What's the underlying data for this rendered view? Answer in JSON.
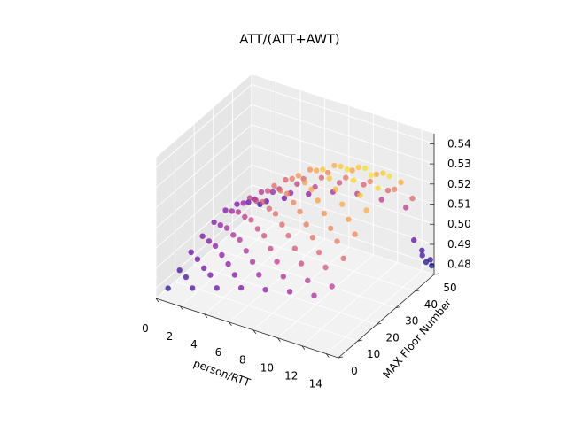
{
  "chart_data": {
    "type": "scatter",
    "title": "ATT/(ATT+AWT)",
    "xlabel": "person/RTT",
    "ylabel": "MAX Floor Number",
    "zlabel": "",
    "xlim": [
      0,
      15
    ],
    "ylim": [
      0,
      50
    ],
    "zlim": [
      0.475,
      0.545
    ],
    "xticks": [
      "0",
      "2",
      "4",
      "6",
      "8",
      "10",
      "12",
      "14"
    ],
    "yticks": [
      "0",
      "10",
      "20",
      "30",
      "40",
      "50"
    ],
    "zticks": [
      "0.48",
      "0.49",
      "0.50",
      "0.51",
      "0.52",
      "0.53",
      "0.54"
    ],
    "colormap": "plasma",
    "grid": true,
    "points": [
      [
        1,
        0,
        0.482
      ],
      [
        3,
        0,
        0.486
      ],
      [
        5,
        0,
        0.49
      ],
      [
        7,
        0,
        0.494
      ],
      [
        9,
        0,
        0.497
      ],
      [
        11,
        0,
        0.5
      ],
      [
        13,
        0,
        0.502
      ],
      [
        1,
        6,
        0.486
      ],
      [
        3,
        6,
        0.491
      ],
      [
        5,
        6,
        0.497
      ],
      [
        7,
        6,
        0.502
      ],
      [
        9,
        6,
        0.506
      ],
      [
        11,
        6,
        0.509
      ],
      [
        13,
        6,
        0.511
      ],
      [
        1,
        12,
        0.49
      ],
      [
        3,
        12,
        0.497
      ],
      [
        5,
        12,
        0.504
      ],
      [
        7,
        12,
        0.51
      ],
      [
        9,
        12,
        0.514
      ],
      [
        11,
        12,
        0.517
      ],
      [
        13,
        12,
        0.519
      ],
      [
        1,
        18,
        0.493
      ],
      [
        3,
        18,
        0.501
      ],
      [
        5,
        18,
        0.509
      ],
      [
        7,
        18,
        0.516
      ],
      [
        9,
        18,
        0.521
      ],
      [
        11,
        18,
        0.524
      ],
      [
        13,
        18,
        0.525
      ],
      [
        1,
        24,
        0.495
      ],
      [
        3,
        24,
        0.504
      ],
      [
        5,
        24,
        0.513
      ],
      [
        7,
        24,
        0.521
      ],
      [
        9,
        24,
        0.527
      ],
      [
        11,
        24,
        0.531
      ],
      [
        13,
        24,
        0.532
      ],
      [
        1,
        30,
        0.496
      ],
      [
        3,
        30,
        0.506
      ],
      [
        5,
        30,
        0.516
      ],
      [
        7,
        30,
        0.525
      ],
      [
        9,
        30,
        0.532
      ],
      [
        11,
        30,
        0.536
      ],
      [
        13,
        30,
        0.537
      ],
      [
        1,
        36,
        0.494
      ],
      [
        3,
        36,
        0.504
      ],
      [
        5,
        36,
        0.514
      ],
      [
        7,
        36,
        0.523
      ],
      [
        9,
        36,
        0.529
      ],
      [
        11,
        36,
        0.532
      ],
      [
        13,
        36,
        0.533
      ],
      [
        1,
        42,
        0.49
      ],
      [
        3,
        42,
        0.499
      ],
      [
        5,
        42,
        0.507
      ],
      [
        7,
        42,
        0.514
      ],
      [
        9,
        42,
        0.518
      ],
      [
        11,
        42,
        0.52
      ],
      [
        13,
        42,
        0.52
      ],
      [
        1,
        48,
        0.484
      ],
      [
        3,
        48,
        0.491
      ],
      [
        5,
        48,
        0.497
      ],
      [
        7,
        48,
        0.502
      ],
      [
        9,
        48,
        0.505
      ],
      [
        11,
        48,
        0.506
      ],
      [
        13,
        48,
        0.506
      ],
      [
        2,
        3,
        0.487
      ],
      [
        4,
        3,
        0.492
      ],
      [
        6,
        3,
        0.496
      ],
      [
        8,
        3,
        0.5
      ],
      [
        10,
        3,
        0.503
      ],
      [
        12,
        3,
        0.505
      ],
      [
        14,
        3,
        0.506
      ],
      [
        2,
        9,
        0.491
      ],
      [
        4,
        9,
        0.497
      ],
      [
        6,
        9,
        0.503
      ],
      [
        8,
        9,
        0.508
      ],
      [
        10,
        9,
        0.512
      ],
      [
        12,
        9,
        0.514
      ],
      [
        14,
        9,
        0.515
      ],
      [
        2,
        15,
        0.495
      ],
      [
        4,
        15,
        0.502
      ],
      [
        6,
        15,
        0.509
      ],
      [
        8,
        15,
        0.515
      ],
      [
        10,
        15,
        0.519
      ],
      [
        12,
        15,
        0.521
      ],
      [
        14,
        15,
        0.522
      ],
      [
        2,
        21,
        0.498
      ],
      [
        4,
        21,
        0.506
      ],
      [
        6,
        21,
        0.514
      ],
      [
        8,
        21,
        0.521
      ],
      [
        10,
        21,
        0.526
      ],
      [
        12,
        21,
        0.528
      ],
      [
        14,
        21,
        0.529
      ],
      [
        2,
        27,
        0.5
      ],
      [
        4,
        27,
        0.509
      ],
      [
        6,
        27,
        0.518
      ],
      [
        8,
        27,
        0.526
      ],
      [
        10,
        27,
        0.532
      ],
      [
        12,
        27,
        0.535
      ],
      [
        14,
        27,
        0.535
      ],
      [
        2,
        33,
        0.499
      ],
      [
        4,
        33,
        0.509
      ],
      [
        6,
        33,
        0.519
      ],
      [
        8,
        33,
        0.527
      ],
      [
        10,
        33,
        0.533
      ],
      [
        12,
        33,
        0.536
      ],
      [
        14,
        33,
        0.536
      ],
      [
        2,
        39,
        0.496
      ],
      [
        4,
        39,
        0.505
      ],
      [
        6,
        39,
        0.514
      ],
      [
        8,
        39,
        0.521
      ],
      [
        10,
        39,
        0.526
      ],
      [
        12,
        39,
        0.528
      ],
      [
        14,
        39,
        0.528
      ],
      [
        2,
        45,
        0.49
      ],
      [
        4,
        45,
        0.498
      ],
      [
        6,
        45,
        0.505
      ],
      [
        8,
        45,
        0.511
      ],
      [
        10,
        45,
        0.514
      ],
      [
        12,
        45,
        0.515
      ],
      [
        14,
        45,
        0.515
      ],
      [
        14.5,
        49,
        0.481
      ],
      [
        14.5,
        47,
        0.486
      ],
      [
        14,
        50,
        0.485
      ],
      [
        13.5,
        49,
        0.49
      ],
      [
        15,
        48,
        0.484
      ],
      [
        14.8,
        50,
        0.479
      ]
    ]
  }
}
